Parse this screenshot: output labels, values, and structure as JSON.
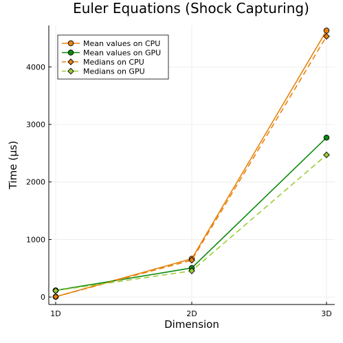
{
  "chart_data": {
    "type": "line",
    "title": "Euler Equations (Shock Capturing)",
    "xlabel": "Dimension",
    "ylabel": "Time (µs)",
    "categories": [
      "1D",
      "2D",
      "3D"
    ],
    "ylim": [
      -130,
      4720
    ],
    "yticks": [
      0,
      1000,
      2000,
      3000,
      4000
    ],
    "ytick_labels": [
      "0",
      "1000",
      "2000",
      "3000",
      "4000"
    ],
    "grid": true,
    "legend_position": "top-left",
    "series": [
      {
        "name": "Mean values on CPU",
        "values": [
          5,
          665,
          4630
        ],
        "color": "#e8820c",
        "dash": "solid",
        "marker": "circle"
      },
      {
        "name": "Mean values on GPU",
        "values": [
          115,
          505,
          2770
        ],
        "color": "#0a8a0a",
        "dash": "solid",
        "marker": "circle"
      },
      {
        "name": "Medians on CPU",
        "values": [
          5,
          640,
          4530
        ],
        "color": "#e8820c",
        "dash": "dashed",
        "marker": "diamond"
      },
      {
        "name": "Medians on GPU",
        "values": [
          110,
          455,
          2470
        ],
        "color": "#9acd32",
        "dash": "dashed",
        "marker": "diamond"
      }
    ]
  }
}
